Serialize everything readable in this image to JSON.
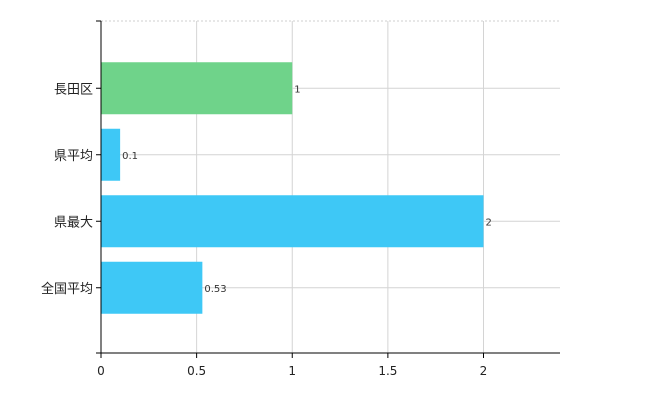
{
  "chart_data": {
    "type": "bar",
    "orientation": "horizontal",
    "categories": [
      "長田区",
      "県平均",
      "県最大",
      "全国平均"
    ],
    "values": [
      1,
      0.1,
      2,
      0.53
    ],
    "value_labels": [
      "1",
      "0.1",
      "2",
      "0.53"
    ],
    "bar_colors": [
      "#6fd38a",
      "#3ec8f6",
      "#3ec8f6",
      "#3ec8f6"
    ],
    "xlim": [
      0,
      2.4
    ],
    "x_ticks": [
      0,
      0.5,
      1,
      1.5,
      2
    ],
    "x_tick_labels": [
      "0",
      "0.5",
      "1",
      "1.5",
      "2"
    ],
    "grid": true,
    "title": "",
    "xlabel": "",
    "ylabel": ""
  }
}
